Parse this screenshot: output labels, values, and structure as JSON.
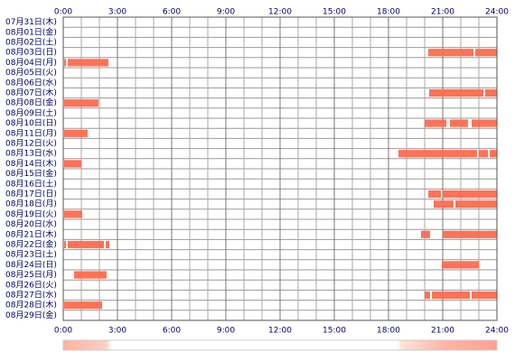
{
  "chart_data": {
    "type": "timeline",
    "categories": [
      "07月31日(木)",
      "08月01日(金)",
      "08月02日(土)",
      "08月03日(日)",
      "08月04日(月)",
      "08月05日(火)",
      "08月06日(水)",
      "08月07日(木)",
      "08月08日(金)",
      "08月09日(土)",
      "08月10日(日)",
      "08月11日(月)",
      "08月12日(火)",
      "08月13日(水)",
      "08月14日(木)",
      "08月15日(金)",
      "08月16日(土)",
      "08月17日(日)",
      "08月18日(月)",
      "08月19日(火)",
      "08月20日(水)",
      "08月21日(木)",
      "08月22日(金)",
      "08月23日(土)",
      "08月24日(日)",
      "08月25日(月)",
      "08月26日(火)",
      "08月27日(水)",
      "08月28日(木)",
      "08月29日(金)"
    ],
    "values": [
      [],
      [],
      [],
      [
        [
          20.2,
          22.7
        ],
        [
          22.8,
          24
        ]
      ],
      [
        [
          0.05,
          0.15
        ],
        [
          0.25,
          2.5
        ]
      ],
      [],
      [],
      [
        [
          20.25,
          23.25
        ],
        [
          23.35,
          24
        ]
      ],
      [
        [
          0.05,
          1.95
        ]
      ],
      [],
      [
        [
          20.0,
          21.2
        ],
        [
          21.4,
          22.4
        ],
        [
          22.6,
          24
        ]
      ],
      [
        [
          0.05,
          1.35
        ]
      ],
      [],
      [
        [
          18.55,
          22.9
        ],
        [
          23.0,
          23.5
        ],
        [
          23.6,
          24
        ]
      ],
      [
        [
          0.05,
          1.0
        ]
      ],
      [],
      [],
      [
        [
          20.2,
          20.9
        ],
        [
          21.0,
          24
        ]
      ],
      [
        [
          20.5,
          21.6
        ],
        [
          21.7,
          24
        ]
      ],
      [
        [
          0.05,
          1.05
        ]
      ],
      [],
      [
        [
          19.8,
          20.3
        ],
        [
          21.0,
          24
        ]
      ],
      [
        [
          0.05,
          0.15
        ],
        [
          0.25,
          2.25
        ],
        [
          2.35,
          2.55
        ]
      ],
      [],
      [
        [
          20.95,
          23.0
        ]
      ],
      [
        [
          0.6,
          2.4
        ]
      ],
      [],
      [
        [
          20.0,
          20.3
        ],
        [
          20.4,
          22.5
        ],
        [
          22.6,
          24
        ]
      ],
      [
        [
          0.05,
          2.15
        ]
      ],
      []
    ],
    "color": "#ff6a4d",
    "xlim": [
      0,
      24
    ],
    "xticks": [
      {
        "value": 0,
        "label": "0:00"
      },
      {
        "value": 3,
        "label": "3:00"
      },
      {
        "value": 6,
        "label": "6:00"
      },
      {
        "value": 9,
        "label": "9:00"
      },
      {
        "value": 12,
        "label": "12:00"
      },
      {
        "value": 15,
        "label": "15:00"
      },
      {
        "value": 18,
        "label": "18:00"
      },
      {
        "value": 21,
        "label": "21:00"
      },
      {
        "value": 24,
        "label": "24:00"
      }
    ],
    "grid": true
  }
}
